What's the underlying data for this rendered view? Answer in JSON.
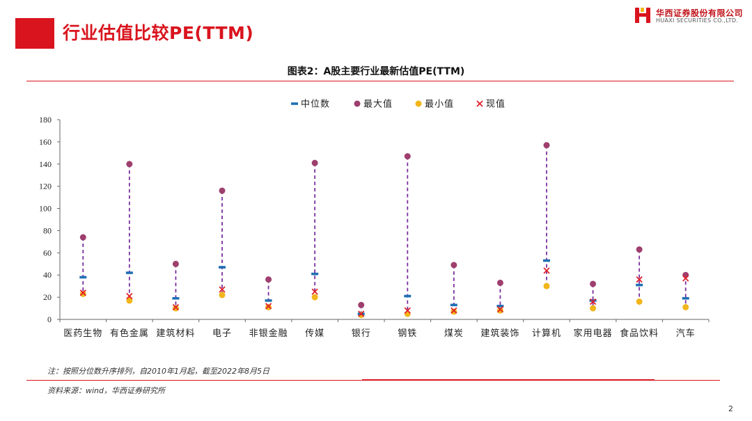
{
  "header": {
    "title": "行业估值比较PE(TTM)",
    "logo_cn": "华西证券股份有限公司",
    "logo_en": "HUAXI SECURITIES CO.,LTD."
  },
  "figure": {
    "title": "图表2：A股主要行业最新估值PE(TTM)",
    "note": "注：按照分位数升序排列，自2010年1月起，截至2022年8月5日",
    "source": "资料来源：wind，华西证券研究所"
  },
  "page_number": "2",
  "colors": {
    "accent_red": "#d9141e",
    "median": "#1f6fb4",
    "max": "#9e3f6e",
    "min": "#f2b61b",
    "current": "#e0202a",
    "range_line": "#7a2f9e"
  },
  "chart_data": {
    "type": "scatter",
    "categories": [
      "医药生物",
      "有色金属",
      "建筑材料",
      "电子",
      "非银金融",
      "传媒",
      "银行",
      "钢铁",
      "煤炭",
      "建筑装饰",
      "计算机",
      "家用电器",
      "食品饮料",
      "汽车"
    ],
    "series": [
      {
        "name": "中位数",
        "marker": "dash",
        "values": [
          38,
          42,
          19,
          47,
          17,
          41,
          5,
          21,
          13,
          12,
          53,
          17,
          31,
          19
        ]
      },
      {
        "name": "最大值",
        "marker": "circle",
        "values": [
          74,
          140,
          50,
          116,
          36,
          141,
          13,
          147,
          49,
          33,
          157,
          32,
          63,
          40
        ]
      },
      {
        "name": "最小值",
        "marker": "circle",
        "values": [
          23,
          17,
          10,
          22,
          11,
          20,
          4,
          5,
          7,
          8,
          30,
          10,
          16,
          11
        ]
      },
      {
        "name": "现值",
        "marker": "x",
        "values": [
          24,
          21,
          11,
          27,
          12,
          25,
          5,
          8,
          8,
          9,
          44,
          16,
          36,
          37
        ]
      }
    ],
    "ylim": [
      0,
      180
    ],
    "yticks": [
      "0",
      "20",
      "40",
      "60",
      "80",
      "100",
      "120",
      "140",
      "160",
      "180"
    ],
    "legend_position": "top-center",
    "grid": false
  }
}
